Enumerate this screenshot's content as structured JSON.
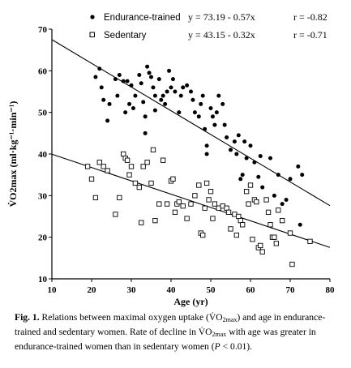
{
  "chart_data": {
    "type": "scatter",
    "xlabel": "Age (yr)",
    "ylabel": "V̇O2max (ml·kg⁻¹·min⁻¹)",
    "xlim": [
      10,
      80
    ],
    "ylim": [
      10,
      70
    ],
    "xticks": [
      10,
      20,
      30,
      40,
      50,
      60,
      70,
      80
    ],
    "yticks": [
      10,
      20,
      30,
      40,
      50,
      60,
      70
    ],
    "grid": false,
    "legend_placement": "top",
    "series": [
      {
        "name": "Endurance-trained",
        "marker": "filled-circle",
        "equation": "y = 73.19 - 0.57x",
        "r": "r = -0.82",
        "fit": {
          "intercept": 73.19,
          "slope": -0.57
        },
        "points": [
          [
            21,
            58.5
          ],
          [
            22,
            60.5
          ],
          [
            22.5,
            56
          ],
          [
            23,
            53
          ],
          [
            24,
            48
          ],
          [
            24.5,
            52
          ],
          [
            26,
            58
          ],
          [
            26.5,
            54
          ],
          [
            27,
            59
          ],
          [
            28,
            57.5
          ],
          [
            28.5,
            50
          ],
          [
            29,
            57.5
          ],
          [
            29.5,
            52
          ],
          [
            30,
            56.5
          ],
          [
            30.5,
            51
          ],
          [
            31,
            54
          ],
          [
            32,
            59
          ],
          [
            32.5,
            57
          ],
          [
            33,
            52.5
          ],
          [
            33.5,
            49
          ],
          [
            33.5,
            45
          ],
          [
            34,
            61
          ],
          [
            34.5,
            59.5
          ],
          [
            35,
            58.5
          ],
          [
            35.5,
            56
          ],
          [
            36,
            54
          ],
          [
            36,
            50.5
          ],
          [
            37,
            58
          ],
          [
            37.5,
            53
          ],
          [
            38,
            54
          ],
          [
            38.5,
            52
          ],
          [
            39,
            55
          ],
          [
            39.5,
            60
          ],
          [
            40,
            56
          ],
          [
            40.5,
            58
          ],
          [
            41,
            55
          ],
          [
            42,
            50
          ],
          [
            42.5,
            54
          ],
          [
            43,
            56
          ],
          [
            44,
            56.5
          ],
          [
            45,
            55
          ],
          [
            45.5,
            53
          ],
          [
            46,
            50
          ],
          [
            47,
            49
          ],
          [
            47.5,
            52
          ],
          [
            48,
            54
          ],
          [
            48.5,
            46
          ],
          [
            49,
            40
          ],
          [
            49,
            42
          ],
          [
            50,
            51
          ],
          [
            50.5,
            49
          ],
          [
            51,
            47
          ],
          [
            51.5,
            50
          ],
          [
            52,
            54
          ],
          [
            53,
            52
          ],
          [
            53.5,
            47
          ],
          [
            54,
            44
          ],
          [
            55,
            41
          ],
          [
            56,
            43
          ],
          [
            56.5,
            40
          ],
          [
            57,
            44.5
          ],
          [
            57.5,
            34
          ],
          [
            58,
            35
          ],
          [
            58.5,
            43
          ],
          [
            59,
            39
          ],
          [
            60,
            42
          ],
          [
            61,
            38
          ],
          [
            62,
            34.5
          ],
          [
            62.5,
            39.5
          ],
          [
            63,
            32
          ],
          [
            64,
            29
          ],
          [
            65,
            39
          ],
          [
            66,
            30
          ],
          [
            67,
            35
          ],
          [
            68,
            28
          ],
          [
            69,
            29
          ],
          [
            70,
            34
          ],
          [
            72,
            37
          ],
          [
            72.5,
            23
          ],
          [
            73,
            35
          ]
        ]
      },
      {
        "name": "Sedentary",
        "marker": "open-square",
        "equation": "y = 43.15 - 0.32x",
        "r": "r = -0.71",
        "fit": {
          "intercept": 43.15,
          "slope": -0.32
        },
        "points": [
          [
            19,
            37
          ],
          [
            20,
            34
          ],
          [
            21,
            29.5
          ],
          [
            22,
            38
          ],
          [
            23,
            37
          ],
          [
            24,
            36
          ],
          [
            26,
            25.5
          ],
          [
            27,
            29.5
          ],
          [
            28,
            40
          ],
          [
            28.5,
            39
          ],
          [
            29,
            38.5
          ],
          [
            29.5,
            35
          ],
          [
            30,
            37
          ],
          [
            31,
            33
          ],
          [
            32,
            32
          ],
          [
            32.5,
            23.5
          ],
          [
            33,
            37
          ],
          [
            34,
            38
          ],
          [
            35,
            33
          ],
          [
            35.5,
            41
          ],
          [
            36,
            24
          ],
          [
            37,
            28
          ],
          [
            38,
            38.5
          ],
          [
            39,
            28
          ],
          [
            40,
            33.5
          ],
          [
            40.5,
            34
          ],
          [
            41,
            26
          ],
          [
            41.5,
            28
          ],
          [
            42,
            28.5
          ],
          [
            43,
            27.5
          ],
          [
            44,
            24.5
          ],
          [
            45,
            28
          ],
          [
            46,
            30
          ],
          [
            47,
            32.5
          ],
          [
            47.5,
            21
          ],
          [
            48,
            20.5
          ],
          [
            48.5,
            27
          ],
          [
            49,
            33
          ],
          [
            49.5,
            29
          ],
          [
            50,
            31
          ],
          [
            50.5,
            24.5
          ],
          [
            51,
            28
          ],
          [
            52,
            27
          ],
          [
            53,
            27.5
          ],
          [
            54,
            27
          ],
          [
            54.5,
            26
          ],
          [
            55,
            22
          ],
          [
            56,
            25.5
          ],
          [
            56.5,
            20.5
          ],
          [
            57,
            25
          ],
          [
            57.5,
            24
          ],
          [
            58,
            23
          ],
          [
            59,
            31
          ],
          [
            59.5,
            28
          ],
          [
            60,
            32.5
          ],
          [
            60.5,
            19.5
          ],
          [
            61,
            29
          ],
          [
            61.5,
            28.5
          ],
          [
            62,
            17.5
          ],
          [
            62.5,
            18
          ],
          [
            63,
            16.5
          ],
          [
            64,
            29
          ],
          [
            64.5,
            26
          ],
          [
            65,
            23
          ],
          [
            65.5,
            20
          ],
          [
            66,
            20
          ],
          [
            66.5,
            18.5
          ],
          [
            67,
            26.5
          ],
          [
            68,
            24
          ],
          [
            70,
            21
          ],
          [
            70.5,
            13.5
          ],
          [
            75,
            19
          ]
        ]
      }
    ]
  },
  "caption": {
    "fig": "Fig. 1.",
    "t1": " Relations between maximal oxygen uptake (",
    "vo2": "V̇O",
    "sub": "2max",
    "t2": ") and age in endurance-trained and sedentary women. Rate of decline in ",
    "vo2b": "V̇O",
    "subb": "2max",
    "t3": " with age was greater in endurance-trained women than in sedentary women (",
    "p": "P",
    "t4": " < 0.01)."
  }
}
